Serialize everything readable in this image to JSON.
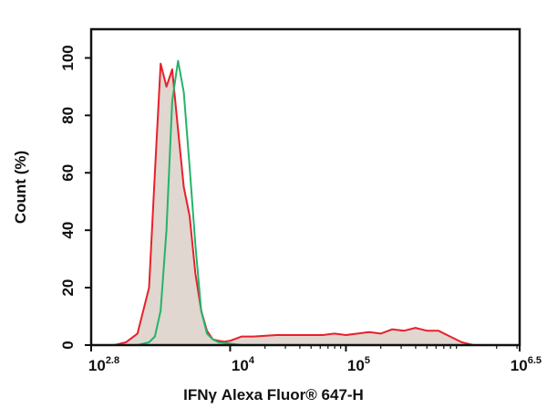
{
  "chart_data": {
    "type": "line",
    "title": "",
    "xlabel": "IFNγ Alexa Fluor® 647-H",
    "ylabel": "Count (%)",
    "x_scale": "log10",
    "xlim": [
      2.8,
      6.5
    ],
    "ylim": [
      0,
      110
    ],
    "grid": false,
    "y_ticks": [
      {
        "value": 0,
        "label": "0"
      },
      {
        "value": 20,
        "label": "20"
      },
      {
        "value": 40,
        "label": "40"
      },
      {
        "value": 60,
        "label": "60"
      },
      {
        "value": 80,
        "label": "80"
      },
      {
        "value": 100,
        "label": "100"
      }
    ],
    "x_ticks": [
      {
        "value": 2.8,
        "base": "10",
        "exp": "2.8"
      },
      {
        "value": 4,
        "base": "10",
        "exp": "4"
      },
      {
        "value": 5,
        "base": "10",
        "exp": "5"
      },
      {
        "value": 6.5,
        "base": "10",
        "exp": "6.5"
      }
    ],
    "series": [
      {
        "color": "#e8202a",
        "filled": true,
        "fill_color": "#d9d0c8",
        "x": [
          3.0,
          3.1,
          3.2,
          3.3,
          3.35,
          3.4,
          3.45,
          3.5,
          3.55,
          3.6,
          3.65,
          3.7,
          3.75,
          3.8,
          3.85,
          3.9,
          3.95,
          4.0,
          4.1,
          4.2,
          4.4,
          4.6,
          4.8,
          4.9,
          5.0,
          5.1,
          5.2,
          5.3,
          5.4,
          5.5,
          5.6,
          5.7,
          5.8,
          5.9,
          6.0,
          6.1
        ],
        "y": [
          0,
          1,
          4,
          20,
          60,
          98,
          90,
          96,
          75,
          55,
          45,
          25,
          12,
          5,
          2,
          1.5,
          1.2,
          1.5,
          3,
          3,
          3.5,
          3.5,
          3.5,
          4,
          3.5,
          4,
          4.5,
          4,
          5.5,
          5,
          6,
          5,
          5,
          3,
          1,
          0
        ]
      },
      {
        "color": "#25b36a",
        "filled": false,
        "x": [
          3.2,
          3.3,
          3.35,
          3.4,
          3.45,
          3.5,
          3.55,
          3.6,
          3.65,
          3.7,
          3.75,
          3.8,
          3.85,
          3.9,
          4.0,
          4.1
        ],
        "y": [
          0,
          1,
          3,
          12,
          40,
          85,
          99,
          88,
          62,
          35,
          12,
          4,
          2,
          1,
          0.5,
          0
        ]
      }
    ]
  }
}
